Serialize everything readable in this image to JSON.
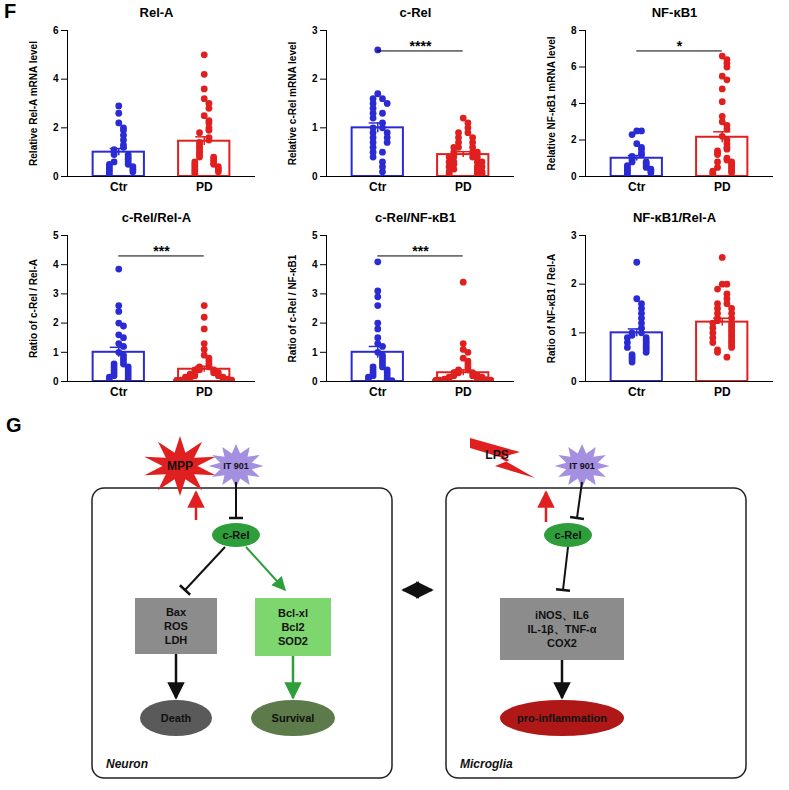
{
  "chart_data": [
    {
      "type": "bar",
      "title": "Rel-A",
      "categories": [
        "Ctr",
        "PD"
      ],
      "values": [
        1.0,
        1.45
      ],
      "errors": [
        0.15,
        0.18
      ],
      "colors": [
        "#2b2bd4",
        "#e0201f"
      ],
      "ylabel": "Relative Rel-A mRNA level",
      "ylim": [
        0,
        6
      ],
      "yticks": [
        0,
        2,
        4,
        6
      ],
      "points": [
        [
          2.9,
          2.6,
          2.2,
          2.0,
          1.9,
          1.7,
          1.5,
          1.3,
          1.2,
          1.1,
          1.0,
          0.9,
          0.9,
          0.8,
          0.7,
          0.6,
          0.6,
          0.5,
          0.5,
          0.4,
          0.4,
          0.3,
          0.3,
          0.2,
          0.2,
          0.1
        ],
        [
          5.0,
          4.2,
          3.6,
          3.2,
          3.0,
          2.8,
          2.5,
          2.3,
          2.2,
          2.0,
          1.9,
          1.8,
          1.6,
          1.5,
          1.4,
          1.3,
          1.2,
          1.1,
          1.0,
          0.9,
          0.8,
          0.8,
          0.7,
          0.6,
          0.6,
          0.5,
          0.5,
          0.4,
          0.4,
          0.3,
          0.3,
          0.2,
          0.2,
          0.1
        ]
      ]
    },
    {
      "type": "bar",
      "title": "c-Rel",
      "categories": [
        "Ctr",
        "PD"
      ],
      "values": [
        1.0,
        0.45
      ],
      "errors": [
        0.1,
        0.06
      ],
      "colors": [
        "#2b2bd4",
        "#e0201f"
      ],
      "ylabel": "Relative c-Rel mRNA level",
      "ylim": [
        0,
        3
      ],
      "yticks": [
        0,
        1,
        2,
        3
      ],
      "annotation": "****",
      "points": [
        [
          2.6,
          1.7,
          1.6,
          1.6,
          1.5,
          1.5,
          1.4,
          1.3,
          1.3,
          1.2,
          1.1,
          1.0,
          1.0,
          0.9,
          0.9,
          0.8,
          0.8,
          0.7,
          0.7,
          0.6,
          0.5,
          0.5,
          0.4,
          0.3,
          0.2,
          0.1
        ],
        [
          1.2,
          1.1,
          1.0,
          0.9,
          0.9,
          0.8,
          0.8,
          0.7,
          0.7,
          0.6,
          0.6,
          0.6,
          0.5,
          0.5,
          0.5,
          0.4,
          0.4,
          0.4,
          0.4,
          0.3,
          0.3,
          0.3,
          0.3,
          0.25,
          0.2,
          0.2,
          0.2,
          0.15,
          0.15,
          0.1,
          0.1,
          0.1,
          0.05,
          0.05,
          0.05,
          0.02
        ]
      ]
    },
    {
      "type": "bar",
      "title": "NF-κB1",
      "categories": [
        "Ctr",
        "PD"
      ],
      "values": [
        1.0,
        2.15
      ],
      "errors": [
        0.15,
        0.3
      ],
      "colors": [
        "#2b2bd4",
        "#e0201f"
      ],
      "ylabel": "Relative NF-κB1 mRNA level",
      "ylim": [
        0,
        8
      ],
      "yticks": [
        0,
        2,
        4,
        6,
        8
      ],
      "annotation": "*",
      "points": [
        [
          2.5,
          2.5,
          2.3,
          1.8,
          1.6,
          1.5,
          1.3,
          1.2,
          1.1,
          1.0,
          0.9,
          0.8,
          0.8,
          0.7,
          0.6,
          0.6,
          0.5,
          0.5,
          0.4,
          0.4,
          0.3,
          0.3,
          0.2,
          0.2,
          0.1
        ],
        [
          6.6,
          6.4,
          6.2,
          6.0,
          5.5,
          5.3,
          4.8,
          4.1,
          3.3,
          3.0,
          2.8,
          2.6,
          2.2,
          2.0,
          1.8,
          1.6,
          1.5,
          1.4,
          1.3,
          1.2,
          1.0,
          0.9,
          0.8,
          0.8,
          0.7,
          0.6,
          0.5,
          0.5,
          0.4,
          0.3,
          0.3,
          0.2,
          0.2,
          0.1
        ]
      ]
    },
    {
      "type": "bar",
      "title": "c-Rel/Rel-A",
      "categories": [
        "Ctr",
        "PD"
      ],
      "values": [
        1.0,
        0.42
      ],
      "errors": [
        0.17,
        0.1
      ],
      "colors": [
        "#2b2bd4",
        "#e0201f"
      ],
      "ylabel": "Ratio of c-Rel / Rel-A",
      "ylim": [
        0,
        5
      ],
      "yticks": [
        0,
        1,
        2,
        3,
        4,
        5
      ],
      "annotation": "***",
      "points": [
        [
          3.85,
          2.6,
          2.4,
          2.0,
          1.9,
          1.6,
          1.5,
          1.3,
          1.2,
          1.0,
          0.9,
          0.8,
          0.7,
          0.6,
          0.6,
          0.5,
          0.5,
          0.4,
          0.4,
          0.3,
          0.3,
          0.2,
          0.2,
          0.15,
          0.1,
          0.05
        ],
        [
          2.6,
          2.2,
          1.8,
          1.3,
          1.1,
          0.9,
          0.8,
          0.7,
          0.6,
          0.5,
          0.5,
          0.4,
          0.4,
          0.4,
          0.3,
          0.3,
          0.3,
          0.25,
          0.2,
          0.2,
          0.2,
          0.15,
          0.15,
          0.1,
          0.1,
          0.1,
          0.08,
          0.05,
          0.05,
          0.05,
          0.04,
          0.03,
          0.03,
          0.02,
          0.02,
          0.01
        ]
      ]
    },
    {
      "type": "bar",
      "title": "c-Rel/NF-κB1",
      "categories": [
        "Ctr",
        "PD"
      ],
      "values": [
        1.0,
        0.3
      ],
      "errors": [
        0.2,
        0.1
      ],
      "colors": [
        "#2b2bd4",
        "#e0201f"
      ],
      "ylabel": "Ratio of c-Rel / NF-κB1",
      "ylim": [
        0,
        5
      ],
      "yticks": [
        0,
        1,
        2,
        3,
        4,
        5
      ],
      "annotation": "***",
      "points": [
        [
          4.1,
          3.1,
          2.9,
          2.6,
          2.0,
          1.8,
          1.5,
          1.3,
          1.2,
          1.0,
          0.9,
          0.8,
          0.7,
          0.6,
          0.5,
          0.5,
          0.4,
          0.4,
          0.3,
          0.3,
          0.2,
          0.2,
          0.15,
          0.1,
          0.05,
          0.03
        ],
        [
          3.4,
          1.3,
          1.1,
          1.0,
          0.8,
          0.7,
          0.6,
          0.5,
          0.4,
          0.4,
          0.3,
          0.3,
          0.3,
          0.2,
          0.2,
          0.2,
          0.15,
          0.15,
          0.1,
          0.1,
          0.1,
          0.08,
          0.06,
          0.05,
          0.05,
          0.04,
          0.04,
          0.03,
          0.03,
          0.02,
          0.02,
          0.01,
          0.01,
          0.01,
          0.01
        ]
      ]
    },
    {
      "type": "bar",
      "title": "NF-κB1/Rel-A",
      "categories": [
        "Ctr",
        "PD"
      ],
      "values": [
        1.0,
        1.22
      ],
      "errors": [
        0.08,
        0.08
      ],
      "colors": [
        "#2b2bd4",
        "#e0201f"
      ],
      "ylabel": "Ratio of NF-κB1 / Rel-A",
      "ylim": [
        0,
        3
      ],
      "yticks": [
        0,
        1,
        2,
        3
      ],
      "points": [
        [
          2.45,
          1.7,
          1.6,
          1.5,
          1.4,
          1.3,
          1.2,
          1.1,
          1.0,
          1.0,
          0.95,
          0.9,
          0.9,
          0.85,
          0.8,
          0.8,
          0.75,
          0.7,
          0.7,
          0.65,
          0.6,
          0.55,
          0.5,
          0.45,
          0.4
        ],
        [
          2.55,
          2.0,
          2.0,
          1.9,
          1.8,
          1.7,
          1.6,
          1.6,
          1.5,
          1.5,
          1.4,
          1.4,
          1.3,
          1.3,
          1.25,
          1.2,
          1.2,
          1.15,
          1.1,
          1.1,
          1.05,
          1.0,
          1.0,
          0.95,
          0.9,
          0.9,
          0.85,
          0.8,
          0.8,
          0.75,
          0.7,
          0.65,
          0.6,
          0.5
        ]
      ]
    }
  ],
  "chart_panel_label": "F",
  "diagram": {
    "panel_label": "G",
    "panels": [
      {
        "name": "Neuron",
        "stimulus": "MPP",
        "inhibitor": "IT 901",
        "node": "c-Rel",
        "inhibited": [
          "Bax",
          "ROS",
          "LDH"
        ],
        "promoted": [
          "Bcl-xl",
          "Bcl2",
          "SOD2"
        ],
        "inhibited_outcome": "Death",
        "promoted_outcome": "Survival"
      },
      {
        "name": "Microglia",
        "stimulus": "LPS",
        "inhibitor": "IT 901",
        "node": "c-Rel",
        "inhibited": [
          "iNOS、IL6",
          "IL-1β、TNF-α",
          "COX2"
        ],
        "inhibited_outcome": "pro-inflammation"
      }
    ]
  }
}
